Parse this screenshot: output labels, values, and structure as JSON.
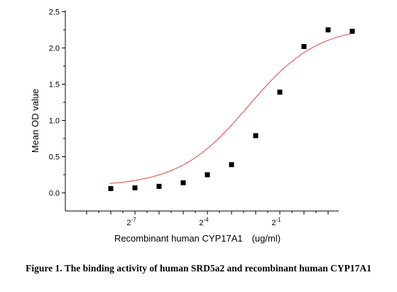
{
  "caption": "Figure 1. The binding activity of human SRD5a2 and recombinant human CYP17A1",
  "chart_data": {
    "type": "scatter",
    "title": "",
    "xlabel": "Recombinant human CYP17A1　(ug/ml)",
    "ylabel": "Mean OD value",
    "xscale": "log2",
    "xlim": [
      -9.0,
      1.0
    ],
    "ylim": [
      -0.25,
      2.5
    ],
    "yticks": [
      "0.0",
      "0.5",
      "1.0",
      "1.5",
      "2.0",
      "2.5"
    ],
    "xticks_labeled": [
      {
        "exp": -7,
        "base": "2",
        "sup": "-7"
      },
      {
        "exp": -4,
        "base": "2",
        "sup": "-4"
      },
      {
        "exp": -1,
        "base": "2",
        "sup": "-1"
      }
    ],
    "series": [
      {
        "marker": "square",
        "color": "#000000",
        "x_log2": [
          -8.0,
          -7.0,
          -6.0,
          -5.0,
          -4.0,
          -3.0,
          -2.0,
          -1.0,
          0.0,
          1.0
        ],
        "y": [
          0.06,
          0.07,
          0.09,
          0.14,
          0.25,
          0.39,
          0.79,
          1.39,
          2.02,
          2.25
        ]
      }
    ],
    "fit": {
      "type": "4PL sigmoid",
      "color": "#e8524a",
      "bottom": 0.09,
      "top": 2.31,
      "ec50_log2": -2.3,
      "hill": 1.0
    },
    "extra_point": {
      "x_log2": 2.0,
      "y": 2.23
    },
    "grid": false,
    "legend": "none"
  }
}
